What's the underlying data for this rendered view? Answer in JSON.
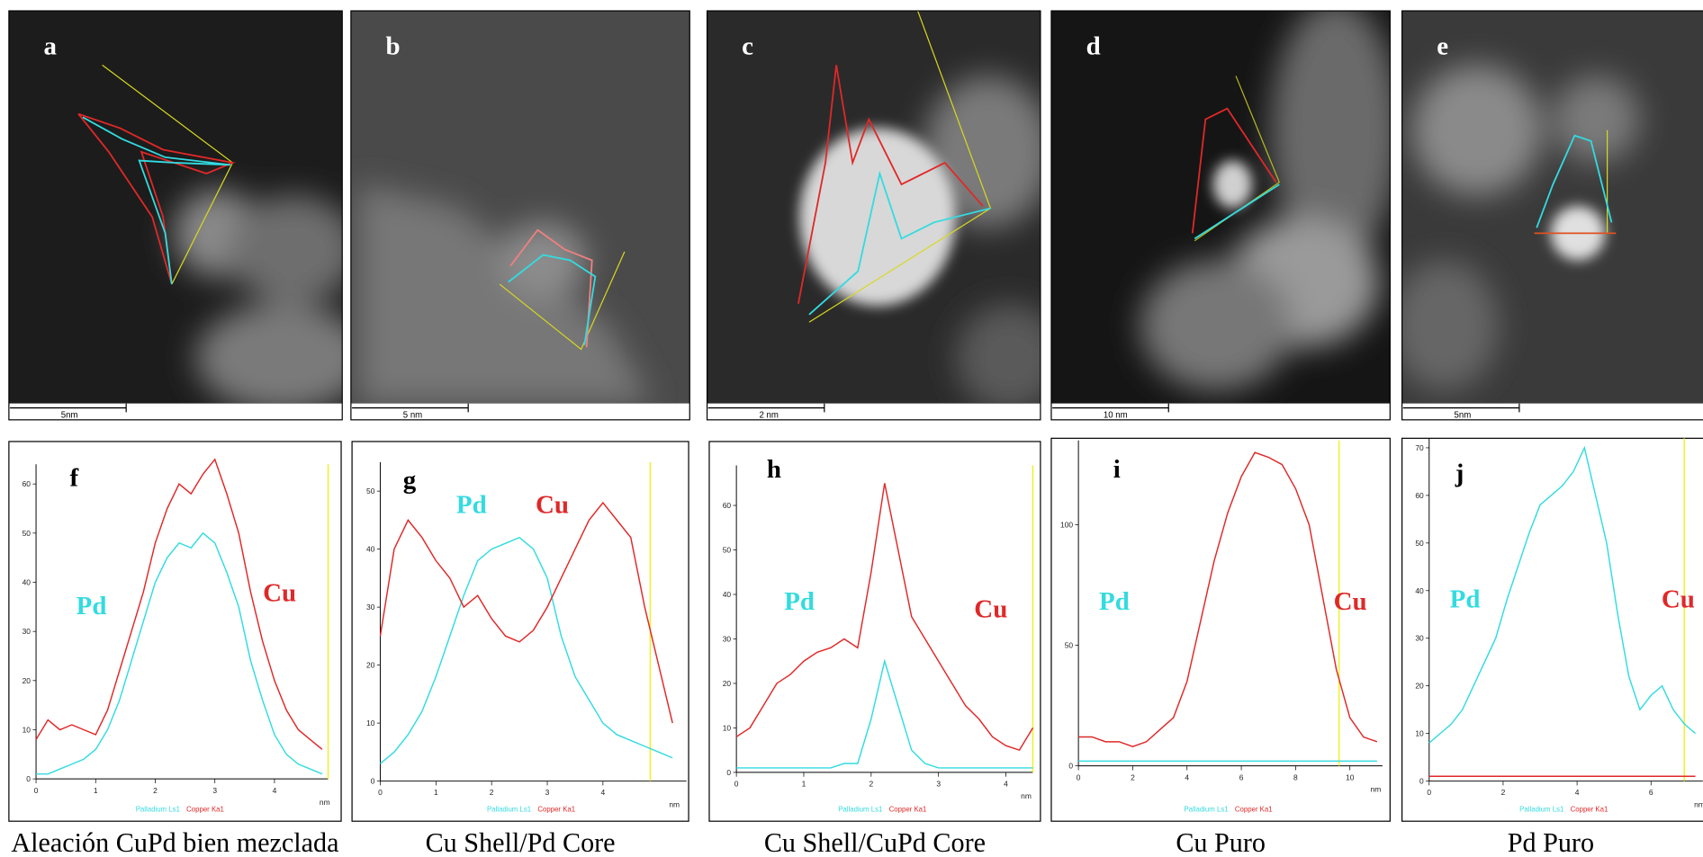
{
  "images": [
    {
      "label": "a",
      "scale_bar": "5nm"
    },
    {
      "label": "b",
      "scale_bar": "5 nm"
    },
    {
      "label": "c",
      "scale_bar": "2 nm"
    },
    {
      "label": "d",
      "scale_bar": "10 nm"
    },
    {
      "label": "e",
      "scale_bar": "5nm"
    }
  ],
  "chart_data": [
    {
      "type": "line",
      "label": "f",
      "caption": "Aleación CuPd bien mezclada",
      "annotations": [
        "Pd",
        "Cu"
      ],
      "x_unit": "nm",
      "x": [
        0,
        0.2,
        0.4,
        0.6,
        0.8,
        1,
        1.2,
        1.4,
        1.6,
        1.8,
        2,
        2.2,
        2.4,
        2.6,
        2.8,
        3,
        3.2,
        3.4,
        3.6,
        3.8,
        4,
        4.2,
        4.4,
        4.6,
        4.8
      ],
      "series": [
        {
          "name": "Palladium Ls1",
          "color": "#33dbe0",
          "values": [
            1,
            1,
            2,
            3,
            4,
            6,
            10,
            16,
            24,
            32,
            40,
            45,
            48,
            47,
            50,
            48,
            42,
            35,
            24,
            16,
            9,
            5,
            3,
            2,
            1
          ]
        },
        {
          "name": "Copper Ka1",
          "color": "#e02828",
          "values": [
            8,
            12,
            10,
            11,
            10,
            9,
            14,
            22,
            30,
            38,
            48,
            55,
            60,
            58,
            62,
            65,
            58,
            50,
            38,
            28,
            20,
            14,
            10,
            8,
            6
          ]
        }
      ],
      "xlim": [
        0,
        4.9
      ],
      "ylim": [
        0,
        64
      ],
      "xticks": [
        0,
        1,
        2,
        3,
        4
      ],
      "yticks": [
        0,
        10,
        20,
        30,
        40,
        50,
        60
      ],
      "cursor_x": 4.9
    },
    {
      "type": "line",
      "label": "g",
      "caption": "Cu Shell/Pd Core",
      "annotations": [
        "Pd",
        "Cu"
      ],
      "x_unit": "nm",
      "x": [
        0,
        0.25,
        0.5,
        0.75,
        1,
        1.25,
        1.5,
        1.75,
        2,
        2.25,
        2.5,
        2.75,
        3,
        3.25,
        3.5,
        3.75,
        4,
        4.25,
        4.5,
        4.75,
        5,
        5.25
      ],
      "series": [
        {
          "name": "Palladium Ls1",
          "color": "#33dbe0",
          "values": [
            3,
            5,
            8,
            12,
            18,
            25,
            32,
            38,
            40,
            41,
            42,
            40,
            35,
            25,
            18,
            14,
            10,
            8,
            7,
            6,
            5,
            4
          ]
        },
        {
          "name": "Copper Ka1",
          "color": "#e02828",
          "values": [
            25,
            40,
            45,
            42,
            38,
            35,
            30,
            32,
            28,
            25,
            24,
            26,
            30,
            35,
            40,
            45,
            48,
            45,
            42,
            30,
            20,
            10
          ]
        }
      ],
      "xlim": [
        0,
        5.5
      ],
      "ylim": [
        0,
        55
      ],
      "xticks": [
        0,
        1,
        2,
        3,
        4
      ],
      "yticks": [
        0,
        10,
        20,
        30,
        40,
        50
      ],
      "cursor_x": 4.85
    },
    {
      "type": "line",
      "label": "h",
      "caption": "Cu Shell/CuPd Core",
      "annotations": [
        "Pd",
        "Cu"
      ],
      "x_unit": "nm",
      "x": [
        0,
        0.2,
        0.4,
        0.6,
        0.8,
        1,
        1.2,
        1.4,
        1.6,
        1.8,
        2,
        2.2,
        2.4,
        2.6,
        2.8,
        3,
        3.2,
        3.4,
        3.6,
        3.8,
        4,
        4.2,
        4.4
      ],
      "series": [
        {
          "name": "Palladium Ls1",
          "color": "#33dbe0",
          "values": [
            1,
            1,
            1,
            1,
            1,
            1,
            1,
            1,
            2,
            2,
            12,
            25,
            15,
            5,
            2,
            1,
            1,
            1,
            1,
            1,
            1,
            1,
            1
          ]
        },
        {
          "name": "Copper Ka1",
          "color": "#e02828",
          "values": [
            8,
            10,
            15,
            20,
            22,
            25,
            27,
            28,
            30,
            28,
            45,
            65,
            50,
            35,
            30,
            25,
            20,
            15,
            12,
            8,
            6,
            5,
            10
          ]
        }
      ],
      "xlim": [
        0,
        4.4
      ],
      "ylim": [
        0,
        69
      ],
      "xticks": [
        0,
        1,
        2,
        3,
        4
      ],
      "yticks": [
        0,
        10,
        20,
        30,
        40,
        50,
        60
      ],
      "cursor_x": 4.4
    },
    {
      "type": "line",
      "label": "i",
      "caption": "Cu Puro",
      "annotations": [
        "Pd",
        "Cu"
      ],
      "x_unit": "nm",
      "x": [
        0,
        0.5,
        1,
        1.5,
        2,
        2.5,
        3,
        3.5,
        4,
        4.5,
        5,
        5.5,
        6,
        6.5,
        7,
        7.5,
        8,
        8.5,
        9,
        9.5,
        10,
        10.5,
        11
      ],
      "series": [
        {
          "name": "Palladium Ls1",
          "color": "#33dbe0",
          "values": [
            2,
            2,
            2,
            2,
            2,
            2,
            2,
            2,
            2,
            2,
            2,
            2,
            2,
            2,
            2,
            2,
            2,
            2,
            2,
            2,
            2,
            2,
            2
          ]
        },
        {
          "name": "Copper Ka1",
          "color": "#e02828",
          "values": [
            12,
            12,
            10,
            10,
            8,
            10,
            15,
            20,
            35,
            60,
            85,
            105,
            120,
            130,
            128,
            125,
            115,
            100,
            70,
            40,
            20,
            12,
            10
          ]
        }
      ],
      "xlim": [
        0,
        11.2
      ],
      "ylim": [
        0,
        135
      ],
      "xticks": [
        0,
        2,
        4,
        6,
        8,
        10
      ],
      "yticks": [
        0,
        50,
        100
      ],
      "cursor_x": 9.6
    },
    {
      "type": "line",
      "label": "j",
      "caption": "Pd Puro",
      "annotations": [
        "Pd",
        "Cu"
      ],
      "x_unit": "nm",
      "x": [
        0,
        0.3,
        0.6,
        0.9,
        1.2,
        1.5,
        1.8,
        2.1,
        2.4,
        2.7,
        3,
        3.3,
        3.6,
        3.9,
        4.2,
        4.5,
        4.8,
        5.1,
        5.4,
        5.7,
        6,
        6.3,
        6.6,
        6.9,
        7.2
      ],
      "series": [
        {
          "name": "Palladium Ls1",
          "color": "#33dbe0",
          "values": [
            8,
            10,
            12,
            15,
            20,
            25,
            30,
            38,
            45,
            52,
            58,
            60,
            62,
            65,
            70,
            60,
            50,
            35,
            22,
            15,
            18,
            20,
            15,
            12,
            10
          ]
        },
        {
          "name": "Copper Ka1",
          "color": "#e02828",
          "values": [
            1,
            1,
            1,
            1,
            1,
            1,
            1,
            1,
            1,
            1,
            1,
            1,
            1,
            1,
            1,
            1,
            1,
            1,
            1,
            1,
            1,
            1,
            1,
            1,
            1
          ]
        }
      ],
      "xlim": [
        0,
        7.4
      ],
      "ylim": [
        0,
        72
      ],
      "xticks": [
        0,
        2,
        4,
        6
      ],
      "yticks": [
        0,
        10,
        20,
        30,
        40,
        50,
        60,
        70
      ],
      "cursor_x": 6.9
    }
  ]
}
